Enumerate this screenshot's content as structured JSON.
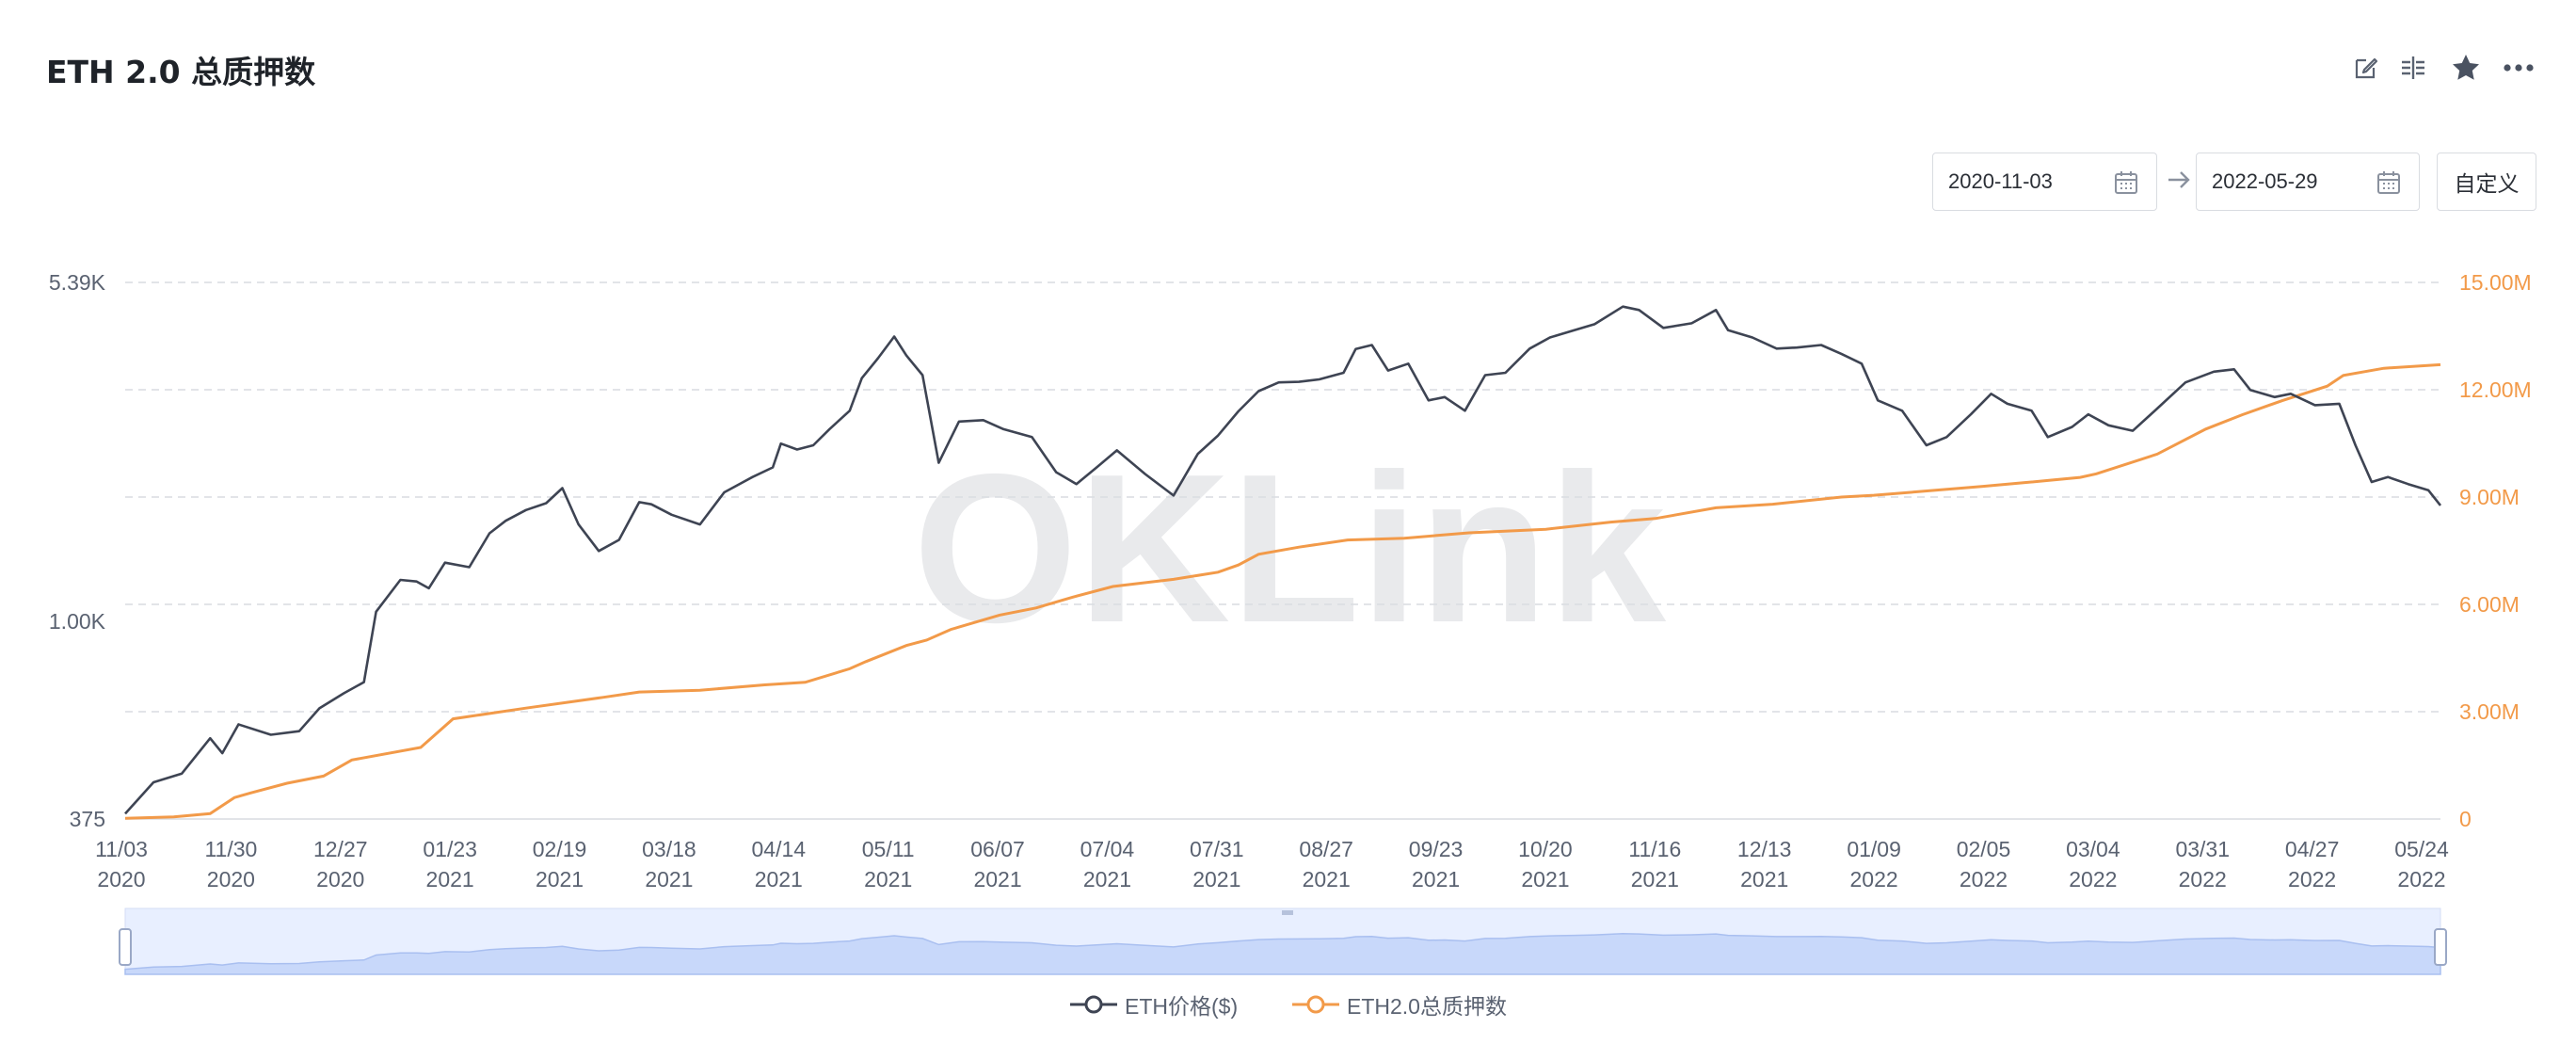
{
  "header": {
    "title": "ETH 2.0 总质押数"
  },
  "toolbar": {
    "icons": [
      "edit-icon",
      "split-icon",
      "star-icon",
      "more-icon"
    ]
  },
  "date_range": {
    "start": "2020-11-03",
    "end": "2022-05-29",
    "custom_label": "自定义"
  },
  "watermark": "OKLink",
  "colors": {
    "price": "#3e4453",
    "staked": "#f29a49",
    "navigator": "#c8d8fa",
    "grid": "#d9dce1"
  },
  "legend": [
    {
      "label": "ETH价格($)",
      "color": "#3e4453"
    },
    {
      "label": "ETH2.0总质押数",
      "color": "#f29a49"
    }
  ],
  "chart_data": {
    "type": "line",
    "y_left": {
      "scale": "log",
      "ticks": [
        "375",
        "1.00K",
        "5.39K"
      ],
      "range": [
        375,
        5390
      ]
    },
    "y_right": {
      "scale": "linear",
      "ticks": [
        "0",
        "3.00M",
        "6.00M",
        "9.00M",
        "12.00M",
        "15.00M"
      ],
      "range": [
        0,
        15000000
      ]
    },
    "x_ticks": [
      {
        "d": "11/03",
        "y": "2020"
      },
      {
        "d": "11/30",
        "y": "2020"
      },
      {
        "d": "12/27",
        "y": "2020"
      },
      {
        "d": "01/23",
        "y": "2021"
      },
      {
        "d": "02/19",
        "y": "2021"
      },
      {
        "d": "03/18",
        "y": "2021"
      },
      {
        "d": "04/14",
        "y": "2021"
      },
      {
        "d": "05/11",
        "y": "2021"
      },
      {
        "d": "06/07",
        "y": "2021"
      },
      {
        "d": "07/04",
        "y": "2021"
      },
      {
        "d": "07/31",
        "y": "2021"
      },
      {
        "d": "08/27",
        "y": "2021"
      },
      {
        "d": "09/23",
        "y": "2021"
      },
      {
        "d": "10/20",
        "y": "2021"
      },
      {
        "d": "11/16",
        "y": "2021"
      },
      {
        "d": "12/13",
        "y": "2021"
      },
      {
        "d": "01/09",
        "y": "2022"
      },
      {
        "d": "02/05",
        "y": "2022"
      },
      {
        "d": "03/04",
        "y": "2022"
      },
      {
        "d": "03/31",
        "y": "2022"
      },
      {
        "d": "04/27",
        "y": "2022"
      },
      {
        "d": "05/24",
        "y": "2022"
      }
    ],
    "series": [
      {
        "name": "ETH价格($)",
        "axis": "left",
        "x": [
          "2020-11-03",
          "2020-11-10",
          "2020-11-17",
          "2020-11-24",
          "2020-11-27",
          "2020-12-01",
          "2020-12-09",
          "2020-12-16",
          "2020-12-21",
          "2020-12-27",
          "2021-01-01",
          "2021-01-04",
          "2021-01-10",
          "2021-01-14",
          "2021-01-17",
          "2021-01-21",
          "2021-01-27",
          "2021-02-01",
          "2021-02-05",
          "2021-02-10",
          "2021-02-15",
          "2021-02-19",
          "2021-02-23",
          "2021-02-28",
          "2021-03-05",
          "2021-03-10",
          "2021-03-13",
          "2021-03-18",
          "2021-03-25",
          "2021-03-31",
          "2021-04-07",
          "2021-04-12",
          "2021-04-14",
          "2021-04-18",
          "2021-04-22",
          "2021-04-26",
          "2021-05-01",
          "2021-05-04",
          "2021-05-08",
          "2021-05-12",
          "2021-05-15",
          "2021-05-19",
          "2021-05-23",
          "2021-05-28",
          "2021-06-03",
          "2021-06-08",
          "2021-06-15",
          "2021-06-21",
          "2021-06-26",
          "2021-07-01",
          "2021-07-06",
          "2021-07-13",
          "2021-07-20",
          "2021-07-26",
          "2021-07-31",
          "2021-08-05",
          "2021-08-10",
          "2021-08-15",
          "2021-08-20",
          "2021-08-25",
          "2021-08-31",
          "2021-09-03",
          "2021-09-07",
          "2021-09-11",
          "2021-09-16",
          "2021-09-21",
          "2021-09-25",
          "2021-09-30",
          "2021-10-05",
          "2021-10-10",
          "2021-10-16",
          "2021-10-21",
          "2021-10-27",
          "2021-11-01",
          "2021-11-08",
          "2021-11-12",
          "2021-11-18",
          "2021-11-25",
          "2021-12-01",
          "2021-12-04",
          "2021-12-10",
          "2021-12-16",
          "2021-12-21",
          "2021-12-27",
          "2022-01-01",
          "2022-01-06",
          "2022-01-10",
          "2022-01-16",
          "2022-01-22",
          "2022-01-27",
          "2022-02-02",
          "2022-02-07",
          "2022-02-11",
          "2022-02-17",
          "2022-02-21",
          "2022-02-27",
          "2022-03-03",
          "2022-03-08",
          "2022-03-14",
          "2022-03-20",
          "2022-03-27",
          "2022-04-03",
          "2022-04-08",
          "2022-04-12",
          "2022-04-18",
          "2022-04-22",
          "2022-04-28",
          "2022-05-04",
          "2022-05-08",
          "2022-05-12",
          "2022-05-16",
          "2022-05-21",
          "2022-05-26",
          "2022-05-29"
        ],
        "y": [
          385,
          450,
          470,
          560,
          520,
          600,
          570,
          580,
          650,
          700,
          740,
          1050,
          1230,
          1220,
          1180,
          1340,
          1310,
          1550,
          1650,
          1740,
          1800,
          1940,
          1620,
          1420,
          1500,
          1810,
          1790,
          1700,
          1620,
          1900,
          2050,
          2150,
          2420,
          2350,
          2400,
          2600,
          2850,
          3350,
          3700,
          4120,
          3750,
          3400,
          2200,
          2700,
          2720,
          2600,
          2500,
          2100,
          1980,
          2150,
          2340,
          2080,
          1870,
          2300,
          2520,
          2840,
          3140,
          3280,
          3290,
          3330,
          3440,
          3870,
          3950,
          3480,
          3600,
          3000,
          3050,
          2850,
          3400,
          3440,
          3880,
          4100,
          4250,
          4380,
          4780,
          4700,
          4300,
          4400,
          4700,
          4250,
          4100,
          3880,
          3900,
          3950,
          3780,
          3600,
          3000,
          2850,
          2400,
          2500,
          2800,
          3100,
          2950,
          2850,
          2500,
          2630,
          2800,
          2650,
          2580,
          2880,
          3280,
          3460,
          3500,
          3160,
          3050,
          3100,
          2930,
          2950,
          2400,
          2000,
          2050,
          1980,
          1920,
          1780
        ]
      },
      {
        "name": "ETH2.0总质押数",
        "axis": "right",
        "x": [
          "2020-11-03",
          "2020-11-15",
          "2020-11-24",
          "2020-11-30",
          "2020-12-04",
          "2020-12-13",
          "2020-12-22",
          "2020-12-29",
          "2021-01-15",
          "2021-01-23",
          "2021-02-10",
          "2021-03-01",
          "2021-03-10",
          "2021-03-25",
          "2021-04-10",
          "2021-04-20",
          "2021-05-01",
          "2021-05-05",
          "2021-05-15",
          "2021-05-20",
          "2021-05-26",
          "2021-06-07",
          "2021-06-16",
          "2021-06-25",
          "2021-07-05",
          "2021-07-20",
          "2021-07-31",
          "2021-08-05",
          "2021-08-10",
          "2021-08-20",
          "2021-09-01",
          "2021-09-15",
          "2021-10-01",
          "2021-10-20",
          "2021-11-05",
          "2021-11-16",
          "2021-12-01",
          "2021-12-15",
          "2022-01-01",
          "2022-01-09",
          "2022-01-20",
          "2022-02-05",
          "2022-02-15",
          "2022-03-01",
          "2022-03-05",
          "2022-03-20",
          "2022-04-01",
          "2022-04-10",
          "2022-04-20",
          "2022-05-01",
          "2022-05-05",
          "2022-05-15",
          "2022-05-29"
        ],
        "y": [
          20000,
          60000,
          150000,
          600000,
          730000,
          1000000,
          1200000,
          1650000,
          2000000,
          2800000,
          3100000,
          3400000,
          3550000,
          3600000,
          3750000,
          3820000,
          4200000,
          4400000,
          4850000,
          5000000,
          5300000,
          5700000,
          5900000,
          6200000,
          6500000,
          6700000,
          6900000,
          7100000,
          7400000,
          7600000,
          7800000,
          7850000,
          8000000,
          8100000,
          8300000,
          8400000,
          8700000,
          8800000,
          9000000,
          9050000,
          9150000,
          9300000,
          9400000,
          9550000,
          9650000,
          10200000,
          10900000,
          11300000,
          11700000,
          12100000,
          12400000,
          12600000,
          12700000
        ]
      }
    ]
  }
}
